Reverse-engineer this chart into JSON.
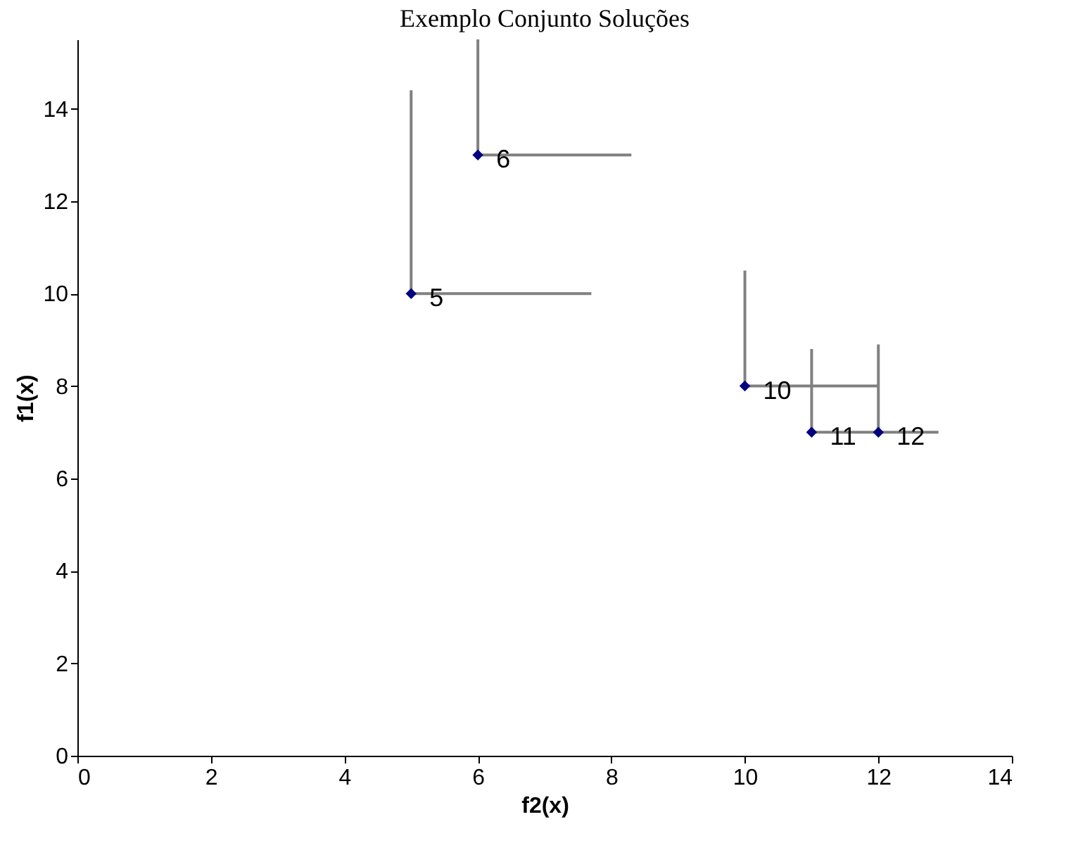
{
  "chart_data": {
    "type": "scatter",
    "title": "Exemplo Conjunto Soluções",
    "xlabel": "f2(x)",
    "ylabel": "f1(x)",
    "xlim": [
      0,
      14
    ],
    "xticks": [
      0,
      2,
      4,
      6,
      8,
      10,
      12,
      14
    ],
    "ylim": [
      0,
      15.5
    ],
    "yticks": [
      0,
      2,
      4,
      6,
      8,
      10,
      12,
      14
    ],
    "grid": false,
    "series": [
      {
        "type": "line",
        "color": "#808080",
        "x": [
          5,
          5,
          7.7
        ],
        "values": [
          14.4,
          10,
          10
        ],
        "marker": "none"
      },
      {
        "type": "line",
        "color": "#808080",
        "x": [
          6,
          6,
          8.3
        ],
        "values": [
          15.5,
          13,
          13
        ],
        "marker": "none"
      },
      {
        "type": "line",
        "color": "#808080",
        "x": [
          10,
          10,
          12
        ],
        "values": [
          10.5,
          8,
          8
        ],
        "marker": "none"
      },
      {
        "type": "line",
        "color": "#808080",
        "x": [
          11,
          11,
          12
        ],
        "values": [
          8.8,
          7,
          7
        ],
        "marker": "none"
      },
      {
        "type": "line",
        "color": "#808080",
        "x": [
          12,
          12,
          12.9
        ],
        "values": [
          8.9,
          7,
          7
        ],
        "marker": "none"
      },
      {
        "color": "#000080",
        "x": [
          5,
          6,
          10,
          11,
          12
        ],
        "values": [
          10,
          13,
          8,
          7,
          7
        ],
        "marker": "diamond"
      }
    ],
    "annotations": [
      {
        "text": "5",
        "x": 5,
        "y": 10
      },
      {
        "text": "6",
        "x": 6,
        "y": 13
      },
      {
        "text": "10",
        "x": 10,
        "y": 8
      },
      {
        "text": "11",
        "x": 11,
        "y": 7
      },
      {
        "text": "12",
        "x": 12,
        "y": 7
      }
    ]
  }
}
